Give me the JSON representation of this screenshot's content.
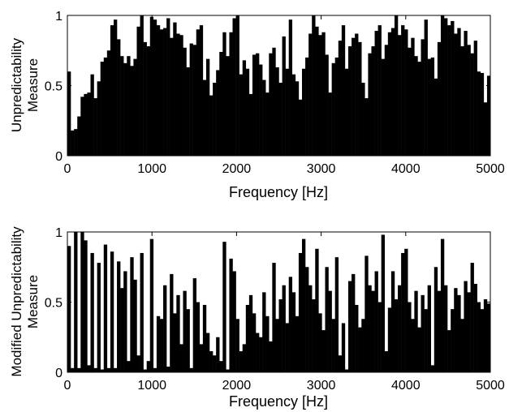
{
  "chart_data": [
    {
      "type": "bar",
      "xlabel": "Frequency [Hz]",
      "ylabel_line1": "Unpredictability",
      "ylabel_line2": "Measure",
      "xlim": [
        0,
        5000
      ],
      "ylim": [
        0,
        1
      ],
      "xticks": [
        0,
        1000,
        2000,
        3000,
        4000,
        5000
      ],
      "xtick_labels": [
        "0",
        "1000",
        "2000",
        "3000",
        "4000",
        "5000"
      ],
      "yticks": [
        0,
        0.5,
        1
      ],
      "ytick_labels": [
        "0",
        "0.5",
        "1"
      ],
      "grid": false,
      "bar_color": "#000000",
      "bin_width_hz": 39.0625,
      "values": [
        0.6,
        0.18,
        0.19,
        0.28,
        0.42,
        0.44,
        0.45,
        0.58,
        0.41,
        0.53,
        0.67,
        0.7,
        0.75,
        0.93,
        0.97,
        0.83,
        0.71,
        0.66,
        0.71,
        0.64,
        0.69,
        0.92,
        1.0,
        0.81,
        0.78,
        0.99,
        0.97,
        0.93,
        0.9,
        0.91,
        0.98,
        0.84,
        0.95,
        0.87,
        0.86,
        0.77,
        0.63,
        0.8,
        0.79,
        0.9,
        0.93,
        0.54,
        0.69,
        0.43,
        0.52,
        0.61,
        0.74,
        0.88,
        0.71,
        0.88,
        0.98,
        1.0,
        0.58,
        0.68,
        0.62,
        0.44,
        0.72,
        0.73,
        0.65,
        0.54,
        0.45,
        0.73,
        0.77,
        0.63,
        0.52,
        0.85,
        0.62,
        0.97,
        0.58,
        0.53,
        0.4,
        0.62,
        0.7,
        0.87,
        1.0,
        0.92,
        0.86,
        0.88,
        0.72,
        0.45,
        0.66,
        0.7,
        0.82,
        0.93,
        0.62,
        0.78,
        0.84,
        0.87,
        0.81,
        0.52,
        0.41,
        0.73,
        0.78,
        0.89,
        0.93,
        0.69,
        0.79,
        0.88,
        0.91,
        1.0,
        0.86,
        0.93,
        0.9,
        0.77,
        0.84,
        0.71,
        0.67,
        0.83,
        0.97,
        0.69,
        0.7,
        0.55,
        0.81,
        1.0,
        0.98,
        0.93,
        0.96,
        0.87,
        0.91,
        0.78,
        0.89,
        0.79,
        0.73,
        0.82,
        0.6,
        0.59,
        0.38,
        0.57
      ]
    },
    {
      "type": "bar",
      "xlabel": "Frequency [Hz]",
      "ylabel_line1": "Modified Unpredictability",
      "ylabel_line2": "Measure",
      "xlim": [
        0,
        5000
      ],
      "ylim": [
        0,
        1
      ],
      "xticks": [
        0,
        1000,
        2000,
        3000,
        4000,
        5000
      ],
      "xtick_labels": [
        "0",
        "1000",
        "2000",
        "3000",
        "4000",
        "5000"
      ],
      "yticks": [
        0,
        0.5,
        1
      ],
      "ytick_labels": [
        "0",
        "0.5",
        "1"
      ],
      "grid": false,
      "bar_color": "#000000",
      "bin_width_hz": 39.0625,
      "values": [
        0.9,
        0.03,
        1.0,
        0.03,
        1.0,
        0.94,
        0.05,
        0.85,
        0.03,
        0.78,
        0.02,
        0.91,
        0.03,
        0.86,
        0.03,
        0.79,
        0.6,
        0.72,
        0.08,
        0.82,
        0.66,
        0.12,
        0.85,
        0.02,
        0.08,
        0.95,
        0.03,
        0.4,
        0.38,
        0.62,
        0.04,
        0.7,
        0.42,
        0.55,
        0.2,
        0.58,
        0.45,
        0.03,
        0.67,
        0.5,
        0.2,
        0.48,
        0.28,
        0.15,
        0.12,
        0.25,
        0.08,
        0.93,
        0.02,
        0.81,
        0.72,
        0.38,
        0.15,
        0.2,
        0.48,
        0.55,
        0.42,
        0.28,
        0.25,
        0.57,
        0.4,
        0.22,
        0.78,
        0.38,
        0.52,
        0.62,
        0.35,
        0.68,
        0.57,
        0.4,
        0.85,
        0.95,
        0.75,
        0.62,
        0.52,
        0.88,
        0.42,
        0.3,
        0.75,
        0.58,
        0.38,
        0.82,
        0.12,
        0.35,
        0.02,
        0.65,
        0.7,
        0.48,
        0.32,
        0.38,
        0.83,
        0.62,
        0.58,
        0.72,
        0.5,
        0.98,
        0.15,
        0.46,
        0.72,
        0.52,
        0.62,
        0.85,
        0.88,
        0.5,
        0.38,
        0.58,
        0.32,
        0.55,
        0.45,
        0.62,
        0.05,
        0.75,
        0.58,
        0.95,
        0.62,
        0.3,
        0.45,
        0.6,
        0.55,
        0.38,
        0.65,
        0.57,
        0.78,
        0.63,
        0.5,
        0.45,
        0.52,
        0.49
      ]
    }
  ]
}
